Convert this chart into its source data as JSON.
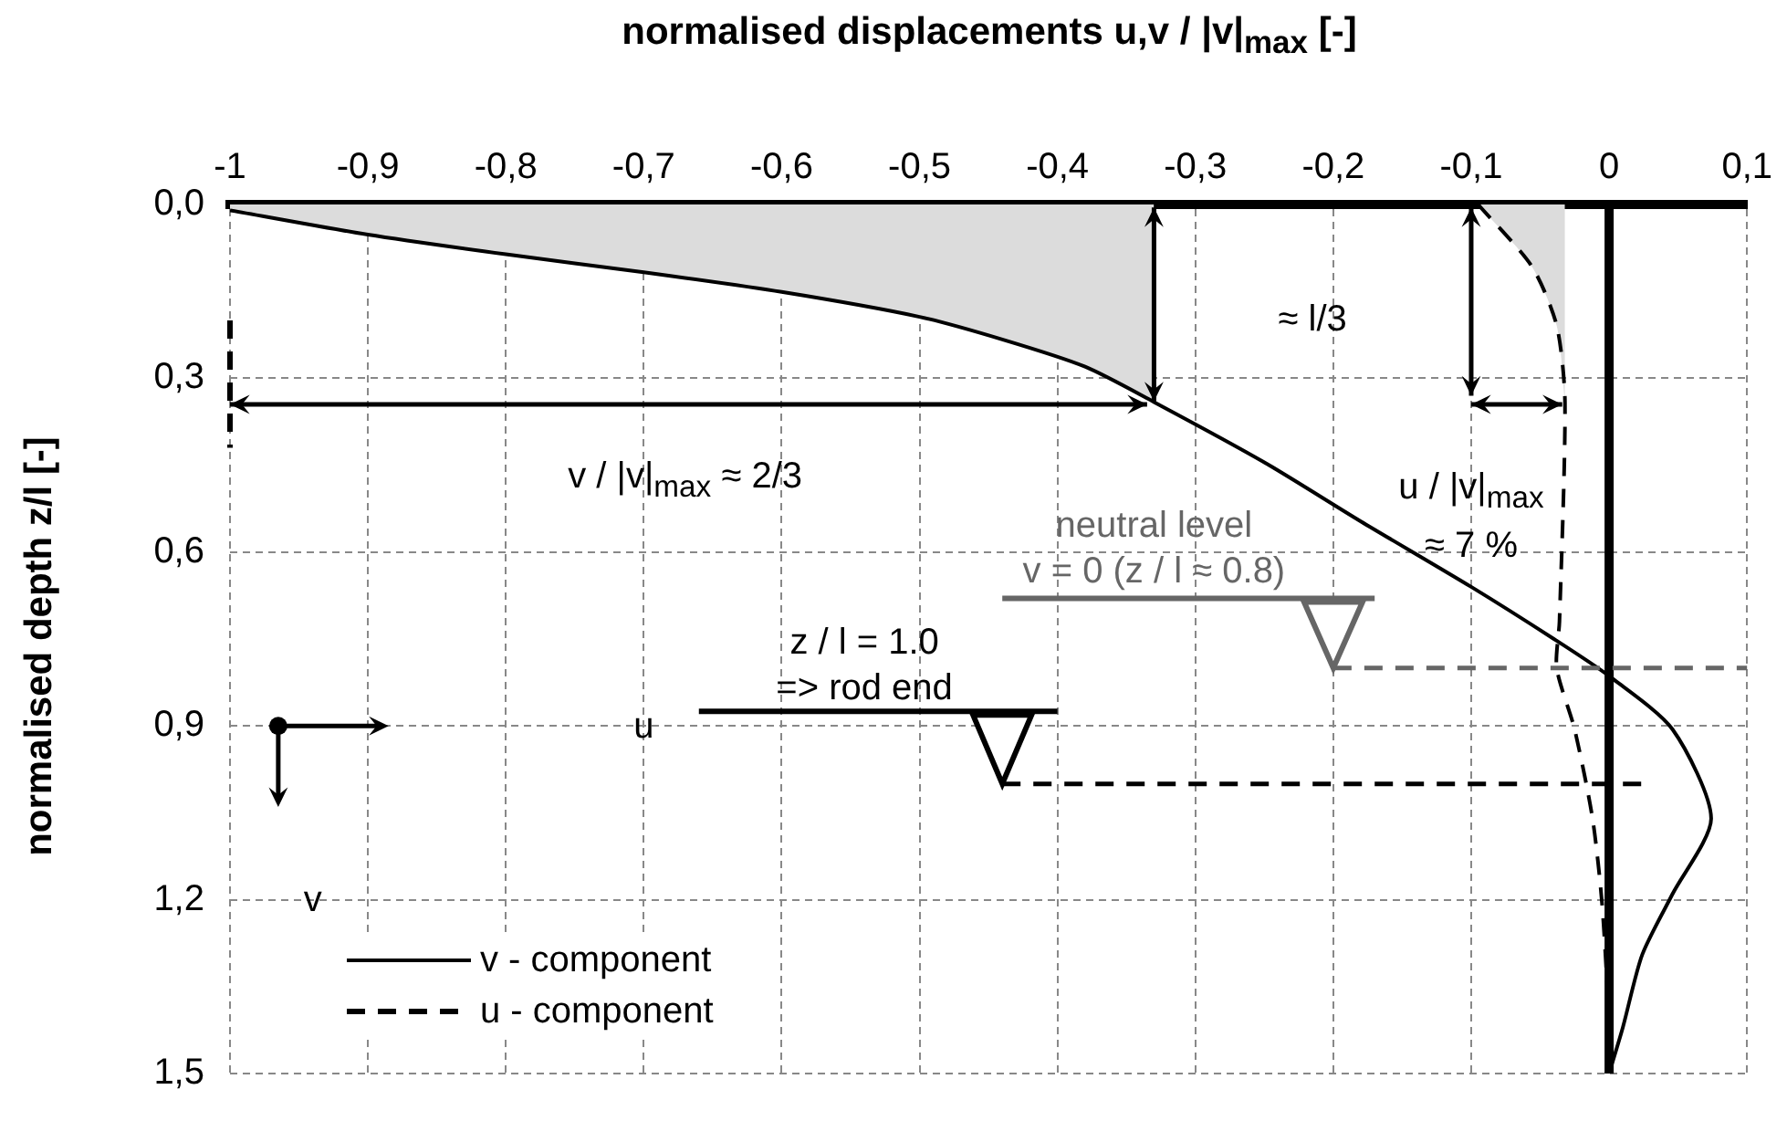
{
  "chart_data": {
    "type": "line",
    "xlabel": "normalised displacements u,v / |v|$_{max}$ [-]",
    "ylabel": "normalised depth z/l [-]",
    "xlim": [
      -1,
      0.1
    ],
    "xticks": [
      -1,
      {
        "value": -0.9,
        "label": "-0,9"
      },
      {
        "value": -0.8,
        "label": "-0,8"
      },
      {
        "value": -0.7,
        "label": "-0,7"
      },
      {
        "value": -0.6,
        "label": "-0,6"
      },
      {
        "value": -0.5,
        "label": "-0,5"
      },
      {
        "value": -0.4,
        "label": "-0,4"
      },
      {
        "value": -0.3,
        "label": "-0,3"
      },
      {
        "value": -0.2,
        "label": "-0,2"
      },
      {
        "value": -0.1,
        "label": "-0,1"
      },
      0,
      {
        "value": 0.1,
        "label": "0,1"
      }
    ],
    "ylim": [
      1.5,
      0
    ],
    "yticks": [
      {
        "value": 0,
        "label": "0,0"
      },
      {
        "value": 0.3,
        "label": "0,3"
      },
      {
        "value": 0.6,
        "label": "0,6"
      },
      {
        "value": 0.9,
        "label": "0,9"
      },
      {
        "value": 1.2,
        "label": "1,2"
      },
      {
        "value": 1.5,
        "label": "1,5"
      }
    ],
    "grid": true,
    "legend": "bottom left",
    "marker": "none",
    "series": [
      {
        "name": "v - component",
        "type": "line",
        "line_style": "solid",
        "color": "#000000",
        "x": [
          -1,
          -0.9,
          -0.8,
          -0.7,
          -0.6,
          -0.5,
          -0.44,
          -0.38,
          -0.33,
          -0.25,
          -0.18,
          -0.1,
          -0.04,
          0,
          0.046,
          0.074,
          0.046,
          0.024,
          0.01,
          0
        ],
        "values": [
          0.01,
          0.052,
          0.086,
          0.117,
          0.151,
          0.194,
          0.233,
          0.28,
          0.341,
          0.445,
          0.547,
          0.66,
          0.75,
          0.814,
          0.906,
          1.06,
          1.19,
          1.295,
          1.42,
          1.5
        ]
      },
      {
        "name": "u - component",
        "type": "line",
        "line_style": "dashed",
        "color": "#000000",
        "x": [
          -0.095,
          -0.056,
          -0.038,
          -0.032,
          -0.036,
          -0.038,
          -0.025,
          -0.012,
          -0.005,
          0,
          0
        ],
        "values": [
          0,
          0.107,
          0.209,
          0.341,
          0.72,
          0.8,
          0.906,
          1.06,
          1.21,
          1.42,
          1.5
        ]
      },
      {
        "type": "area",
        "color": "#dcdcdc",
        "x": [
          -1,
          -0.9,
          -0.8,
          -0.7,
          -0.6,
          -0.5,
          -0.44,
          -0.38,
          -0.33
        ],
        "values": [
          0.01,
          0.052,
          0.086,
          0.117,
          0.151,
          0.194,
          0.233,
          0.28,
          0.341
        ]
      },
      {
        "type": "area",
        "color": "#dcdcdc",
        "x": [
          -0.095,
          -0.056,
          -0.038,
          -0.032
        ],
        "values": [
          0,
          0.107,
          0.209,
          0.341
        ]
      }
    ],
    "ref_lines": [
      {
        "axis": "x",
        "value": 0,
        "color": "#000000",
        "line_style": "solid"
      },
      {
        "axis": "y",
        "value": 0.8,
        "label": "neutral level\nv = 0 (z / l ≈ 0.8)",
        "color": "#666666",
        "line_style": "dashed"
      },
      {
        "axis": "y",
        "value": 1.0,
        "label": "z / l = 1.0\n=> rod end",
        "color": "#000000",
        "line_style": "dashed"
      }
    ],
    "annotations": [
      "≈ l/3",
      "v / |v|$_{max}$ ≈ 2/3",
      "u / |v|$_{max}$ ≈ 7 %",
      "u",
      "v"
    ]
  }
}
